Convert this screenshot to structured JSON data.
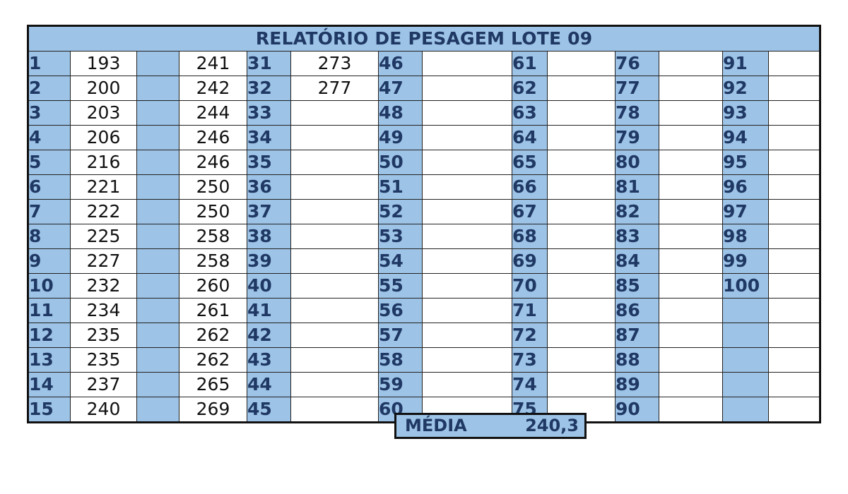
{
  "title": "RELATÓRIO DE PESAGEM LOTE 09",
  "rows": [
    [
      "1",
      "193",
      "",
      "241",
      "31",
      "273",
      "46",
      "",
      "61",
      "",
      "76",
      "",
      "91",
      ""
    ],
    [
      "2",
      "200",
      "",
      "242",
      "32",
      "277",
      "47",
      "",
      "62",
      "",
      "77",
      "",
      "92",
      ""
    ],
    [
      "3",
      "203",
      "",
      "244",
      "33",
      "",
      "48",
      "",
      "63",
      "",
      "78",
      "",
      "93",
      ""
    ],
    [
      "4",
      "206",
      "",
      "246",
      "34",
      "",
      "49",
      "",
      "64",
      "",
      "79",
      "",
      "94",
      ""
    ],
    [
      "5",
      "216",
      "",
      "246",
      "35",
      "",
      "50",
      "",
      "65",
      "",
      "80",
      "",
      "95",
      ""
    ],
    [
      "6",
      "221",
      "",
      "250",
      "36",
      "",
      "51",
      "",
      "66",
      "",
      "81",
      "",
      "96",
      ""
    ],
    [
      "7",
      "222",
      "",
      "250",
      "37",
      "",
      "52",
      "",
      "67",
      "",
      "82",
      "",
      "97",
      ""
    ],
    [
      "8",
      "225",
      "",
      "258",
      "38",
      "",
      "53",
      "",
      "68",
      "",
      "83",
      "",
      "98",
      ""
    ],
    [
      "9",
      "227",
      "",
      "258",
      "39",
      "",
      "54",
      "",
      "69",
      "",
      "84",
      "",
      "99",
      ""
    ],
    [
      "10",
      "232",
      "",
      "260",
      "40",
      "",
      "55",
      "",
      "70",
      "",
      "85",
      "",
      "100",
      ""
    ],
    [
      "11",
      "234",
      "",
      "261",
      "41",
      "",
      "56",
      "",
      "71",
      "",
      "86",
      "",
      "",
      ""
    ],
    [
      "12",
      "235",
      "",
      "262",
      "42",
      "",
      "57",
      "",
      "72",
      "",
      "87",
      "",
      "",
      ""
    ],
    [
      "13",
      "235",
      "",
      "262",
      "43",
      "",
      "58",
      "",
      "73",
      "",
      "88",
      "",
      "",
      ""
    ],
    [
      "14",
      "237",
      "",
      "265",
      "44",
      "",
      "59",
      "",
      "74",
      "",
      "89",
      "",
      "",
      ""
    ],
    [
      "15",
      "240",
      "",
      "269",
      "45",
      "",
      "60",
      "",
      "75",
      "",
      "90",
      "",
      "",
      ""
    ]
  ],
  "media": {
    "label": "MÉDIA",
    "value": "240,3"
  },
  "colors": {
    "header_fill": "#9dc3e6",
    "header_text": "#1f3864",
    "border": "#111111"
  }
}
